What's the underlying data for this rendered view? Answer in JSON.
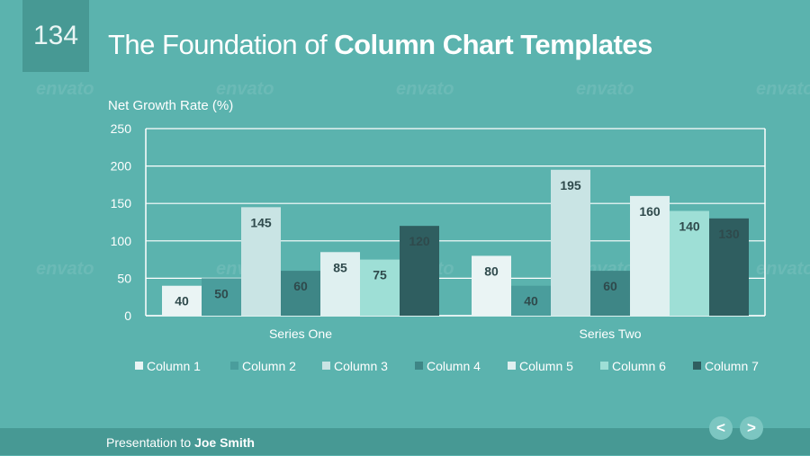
{
  "slide": {
    "number": "134",
    "title_light": "The Foundation of ",
    "title_bold": "Column Chart Templates",
    "watermark": "envato"
  },
  "footer": {
    "prefix": "Presentation to ",
    "name": "Joe Smith"
  },
  "nav": {
    "prev_icon": "<",
    "next_icon": ">"
  },
  "colors": {
    "background": "#5bb3ae",
    "header_box": "#479994",
    "footer_bar": "#479994"
  },
  "chart_data": {
    "type": "bar",
    "title": "",
    "ylabel": "Net Growth Rate (%)",
    "xlabel": "",
    "ylim": [
      0,
      250
    ],
    "yticks": [
      0,
      50,
      100,
      150,
      200,
      250
    ],
    "grid": true,
    "legend_position": "bottom",
    "categories": [
      "Series One",
      "Series Two"
    ],
    "series": [
      {
        "name": "Column 1",
        "values": [
          40,
          80
        ],
        "color": "#eaf4f4"
      },
      {
        "name": "Column 2",
        "values": [
          50,
          40
        ],
        "color": "#4a9d9c"
      },
      {
        "name": "Column 3",
        "values": [
          145,
          195
        ],
        "color": "#c9e4e4"
      },
      {
        "name": "Column 4",
        "values": [
          60,
          60
        ],
        "color": "#3e8686"
      },
      {
        "name": "Column 5",
        "values": [
          85,
          160
        ],
        "color": "#dff0f0"
      },
      {
        "name": "Column 6",
        "values": [
          75,
          140
        ],
        "color": "#9edfd6"
      },
      {
        "name": "Column 7",
        "values": [
          120,
          130
        ],
        "color": "#2f5e60"
      }
    ]
  }
}
